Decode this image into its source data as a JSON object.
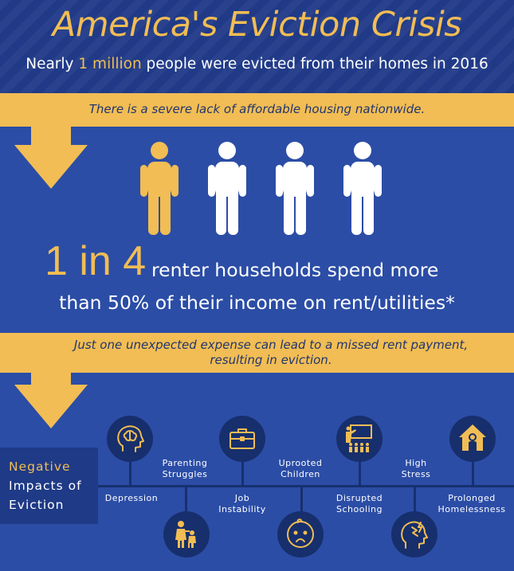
{
  "header": {
    "title": "America's Eviction Crisis",
    "subtitle_pre": "Nearly ",
    "subtitle_highlight": "1 million",
    "subtitle_post": " people were evicted from their homes in 2016"
  },
  "band1": {
    "text": "There is a severe lack of affordable housing nationwide."
  },
  "stat": {
    "big": "1 in 4",
    "line1": "renter households spend more",
    "line2": "than 50% of their income on rent/utilities*"
  },
  "band2": {
    "line1": "Just one unexpected expense can lead to a missed rent payment,",
    "line2": "resulting in eviction."
  },
  "negative": {
    "line1": "Negative",
    "line2": "Impacts of",
    "line3": "Eviction"
  },
  "impacts": [
    {
      "label": "Depression",
      "icon": "brain-head-icon"
    },
    {
      "label1": "Parenting",
      "label2": "Struggles",
      "icon": "parent-child-icon"
    },
    {
      "label1": "Job",
      "label2": "Instability",
      "icon": "briefcase-icon"
    },
    {
      "label1": "Uprooted",
      "label2": "Children",
      "icon": "sad-baby-icon"
    },
    {
      "label1": "Disrupted",
      "label2": "Schooling",
      "icon": "classroom-icon"
    },
    {
      "label1": "High",
      "label2": "Stress",
      "icon": "stressed-head-icon"
    },
    {
      "label1": "Prolonged",
      "label2": "Homelessness",
      "icon": "house-person-icon"
    }
  ],
  "colors": {
    "accent": "#f1bd54",
    "background": "#2b4da6",
    "dark": "#172f6c",
    "white": "#ffffff"
  }
}
